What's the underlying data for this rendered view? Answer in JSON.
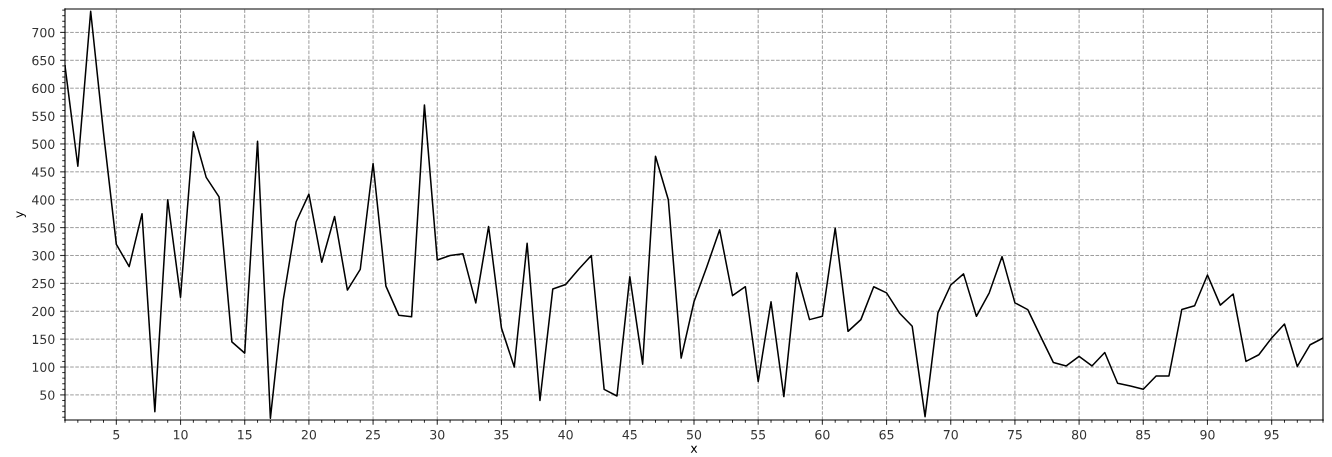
{
  "chart_data": {
    "type": "line",
    "xlabel": "x",
    "ylabel": "y",
    "x": [
      1,
      2,
      3,
      4,
      5,
      6,
      7,
      8,
      9,
      10,
      11,
      12,
      13,
      14,
      15,
      16,
      17,
      18,
      19,
      20,
      21,
      22,
      23,
      24,
      25,
      26,
      27,
      28,
      29,
      30,
      31,
      32,
      33,
      34,
      35,
      36,
      37,
      38,
      39,
      40,
      41,
      42,
      43,
      44,
      45,
      46,
      47,
      48,
      49,
      50,
      51,
      52,
      53,
      54,
      55,
      56,
      57,
      58,
      59,
      60,
      61,
      62,
      63,
      64,
      65,
      66,
      67,
      68,
      69,
      70,
      71,
      72,
      73,
      74,
      75,
      76,
      77,
      78,
      79,
      80,
      81,
      82,
      83,
      84,
      85,
      86,
      87,
      88,
      89,
      90,
      91,
      92,
      93,
      94,
      95,
      96,
      97,
      98,
      99
    ],
    "series": [
      {
        "color": "#000000",
        "values": [
          640,
          460,
          738,
          520,
          320,
          280,
          375,
          20,
          400,
          225,
          522,
          440,
          405,
          145,
          125,
          505,
          8,
          220,
          360,
          410,
          288,
          370,
          238,
          275,
          465,
          245,
          193,
          190,
          570,
          292,
          300,
          303,
          215,
          352,
          170,
          100,
          322,
          40,
          240,
          248,
          275,
          300,
          60,
          48,
          262,
          105,
          478,
          400,
          116,
          217,
          280,
          346,
          228,
          244,
          74,
          217,
          47,
          269,
          185,
          191,
          349,
          164,
          185,
          244,
          233,
          197,
          173,
          11,
          197,
          247,
          267,
          191,
          233,
          298,
          215,
          203,
          155,
          108,
          102,
          119,
          102,
          126,
          71,
          66,
          60,
          84,
          84,
          203,
          210,
          265,
          211,
          231,
          110,
          122,
          152,
          177,
          101,
          140,
          152
        ]
      }
    ],
    "xlim": [
      1,
      99
    ],
    "ylim": [
      5,
      742
    ],
    "xticks": [
      5,
      10,
      15,
      20,
      25,
      30,
      35,
      40,
      45,
      50,
      55,
      60,
      65,
      70,
      75,
      80,
      85,
      90,
      95
    ],
    "yticks": [
      50,
      100,
      150,
      200,
      250,
      300,
      350,
      400,
      450,
      500,
      550,
      600,
      650,
      700
    ],
    "grid": true,
    "marker": "none",
    "line_style": "solid"
  }
}
